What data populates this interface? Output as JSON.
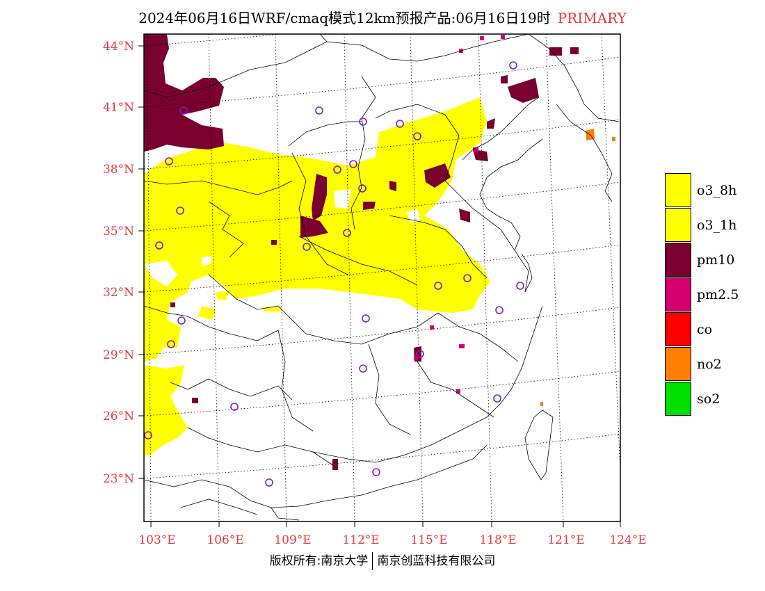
{
  "title": {
    "main": "2024年06月16日WRF/cmaq模式12km预报产品:06月16日19时",
    "tag": "PRIMARY",
    "tag_color": "#e8383d"
  },
  "axes": {
    "lat_labels": [
      "44°N",
      "41°N",
      "38°N",
      "35°N",
      "32°N",
      "29°N",
      "26°N",
      "23°N"
    ],
    "lon_labels": [
      "103°E",
      "106°E",
      "109°E",
      "112°E",
      "115°E",
      "118°E",
      "121°E",
      "124°E"
    ],
    "label_color": "#e8383d"
  },
  "legend": [
    {
      "label": "o3_8h",
      "color": "#ffff00"
    },
    {
      "label": "o3_1h",
      "color": "#ffff00"
    },
    {
      "label": "pm10",
      "color": "#7a0030"
    },
    {
      "label": "pm2.5",
      "color": "#d4006f"
    },
    {
      "label": "co",
      "color": "#ff0000"
    },
    {
      "label": "no2",
      "color": "#ff8000"
    },
    {
      "label": "so2",
      "color": "#00e000"
    }
  ],
  "footer": {
    "left": "版权所有:南京大学",
    "right": "南京创蓝科技有限公司"
  }
}
